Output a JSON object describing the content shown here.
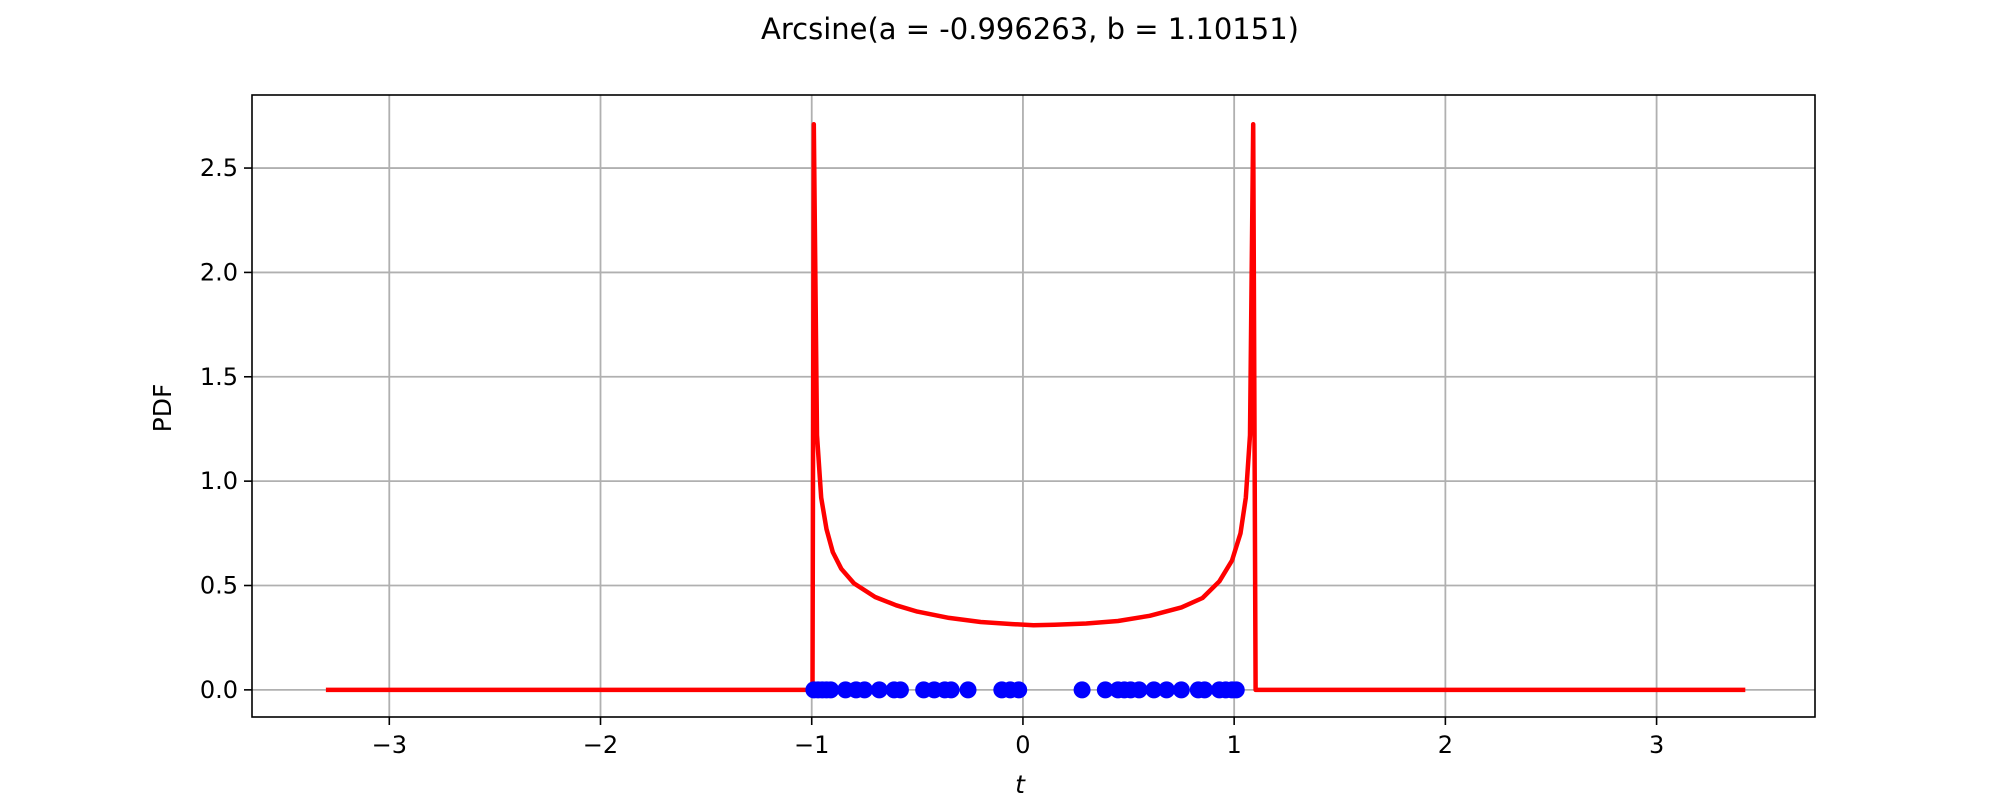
{
  "chart_data": {
    "type": "line",
    "title": "Arcsine(a = -0.996263, b = 1.10151)",
    "xlabel": "t",
    "ylabel": "PDF",
    "xlim": [
      -3.65,
      3.75
    ],
    "ylim": [
      -0.13,
      2.85
    ],
    "grid": true,
    "x_ticks": [
      -3,
      -2,
      -1,
      0,
      1,
      2,
      3
    ],
    "x_tick_labels": [
      "−3",
      "−2",
      "−1",
      "0",
      "1",
      "2",
      "3"
    ],
    "y_ticks": [
      0.0,
      0.5,
      1.0,
      1.5,
      2.0,
      2.5
    ],
    "y_tick_labels": [
      "0.0",
      "0.5",
      "1.0",
      "1.5",
      "2.0",
      "2.5"
    ],
    "pdf_curve": {
      "color": "#ff0000",
      "points": [
        [
          -3.3,
          0.0
        ],
        [
          -1.02,
          0.0
        ],
        [
          -0.996263,
          0.0
        ],
        [
          -0.99,
          2.71
        ],
        [
          -0.975,
          1.22
        ],
        [
          -0.955,
          0.92
        ],
        [
          -0.93,
          0.77
        ],
        [
          -0.9,
          0.66
        ],
        [
          -0.86,
          0.58
        ],
        [
          -0.8,
          0.51
        ],
        [
          -0.7,
          0.445
        ],
        [
          -0.6,
          0.405
        ],
        [
          -0.5,
          0.375
        ],
        [
          -0.35,
          0.345
        ],
        [
          -0.2,
          0.325
        ],
        [
          -0.05,
          0.315
        ],
        [
          0.05,
          0.31
        ],
        [
          0.15,
          0.312
        ],
        [
          0.3,
          0.318
        ],
        [
          0.45,
          0.33
        ],
        [
          0.6,
          0.355
        ],
        [
          0.75,
          0.395
        ],
        [
          0.85,
          0.44
        ],
        [
          0.93,
          0.52
        ],
        [
          0.99,
          0.62
        ],
        [
          1.03,
          0.75
        ],
        [
          1.055,
          0.92
        ],
        [
          1.075,
          1.22
        ],
        [
          1.09,
          2.71
        ],
        [
          1.10151,
          0.0
        ],
        [
          1.12,
          0.0
        ],
        [
          3.42,
          0.0
        ]
      ]
    },
    "samples": {
      "color": "#0000ff",
      "y": 0.0,
      "x": [
        -0.99,
        -0.97,
        -0.95,
        -0.93,
        -0.91,
        -0.84,
        -0.79,
        -0.75,
        -0.68,
        -0.61,
        -0.58,
        -0.47,
        -0.42,
        -0.37,
        -0.34,
        -0.26,
        -0.1,
        -0.06,
        -0.02,
        0.28,
        0.39,
        0.45,
        0.48,
        0.51,
        0.55,
        0.62,
        0.68,
        0.75,
        0.83,
        0.86,
        0.93,
        0.96,
        0.99,
        1.01
      ]
    }
  }
}
